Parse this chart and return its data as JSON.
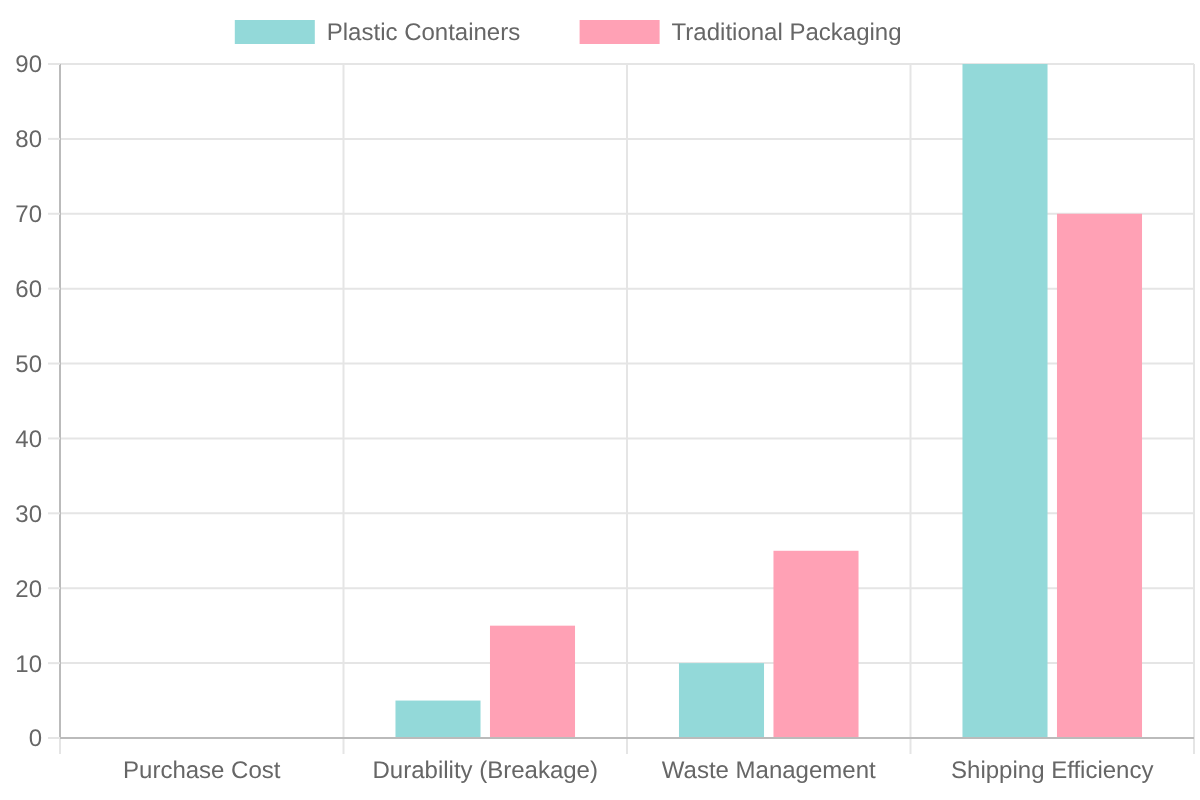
{
  "chart_data": {
    "type": "bar",
    "categories": [
      "Purchase Cost",
      "Durability (Breakage)",
      "Waste Management",
      "Shipping Efficiency"
    ],
    "series": [
      {
        "name": "Plastic Containers",
        "color": "#93d9d9",
        "values": [
          0,
          5,
          10,
          90
        ]
      },
      {
        "name": "Traditional Packaging",
        "color": "#ffa1b5",
        "values": [
          0,
          15,
          25,
          70
        ]
      }
    ],
    "ylim": [
      0,
      90
    ],
    "yticks": [
      0,
      10,
      20,
      30,
      40,
      50,
      60,
      70,
      80,
      90
    ],
    "grid": true,
    "legend": "top"
  }
}
